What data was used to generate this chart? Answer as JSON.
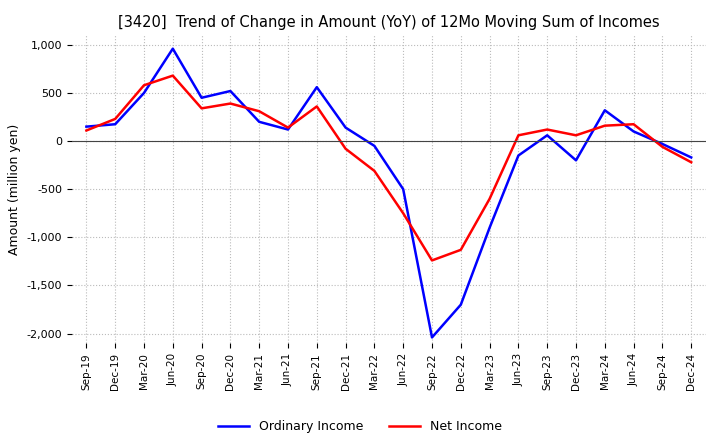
{
  "title": "[3420]  Trend of Change in Amount (YoY) of 12Mo Moving Sum of Incomes",
  "ylabel": "Amount (million yen)",
  "ylim": [
    -2100,
    1100
  ],
  "yticks": [
    1000,
    500,
    0,
    -500,
    -1000,
    -1500,
    -2000
  ],
  "background_color": "#ffffff",
  "grid_color": "#bbbbbb",
  "ordinary_income_color": "#0000ff",
  "net_income_color": "#ff0000",
  "x_labels": [
    "Sep-19",
    "Dec-19",
    "Mar-20",
    "Jun-20",
    "Sep-20",
    "Dec-20",
    "Mar-21",
    "Jun-21",
    "Sep-21",
    "Dec-21",
    "Mar-22",
    "Jun-22",
    "Sep-22",
    "Dec-22",
    "Mar-23",
    "Jun-23",
    "Sep-23",
    "Dec-23",
    "Mar-24",
    "Jun-24",
    "Sep-24",
    "Dec-24"
  ],
  "ordinary_income": [
    150,
    175,
    500,
    960,
    450,
    520,
    200,
    120,
    560,
    140,
    -50,
    -500,
    -2040,
    -1700,
    -900,
    -150,
    60,
    -200,
    320,
    100,
    -30,
    -170
  ],
  "net_income": [
    110,
    230,
    580,
    680,
    340,
    390,
    310,
    140,
    360,
    -80,
    -310,
    -750,
    -1240,
    -1130,
    -600,
    60,
    120,
    60,
    160,
    175,
    -60,
    -220
  ],
  "legend_ordinary": "Ordinary Income",
  "legend_net": "Net Income"
}
